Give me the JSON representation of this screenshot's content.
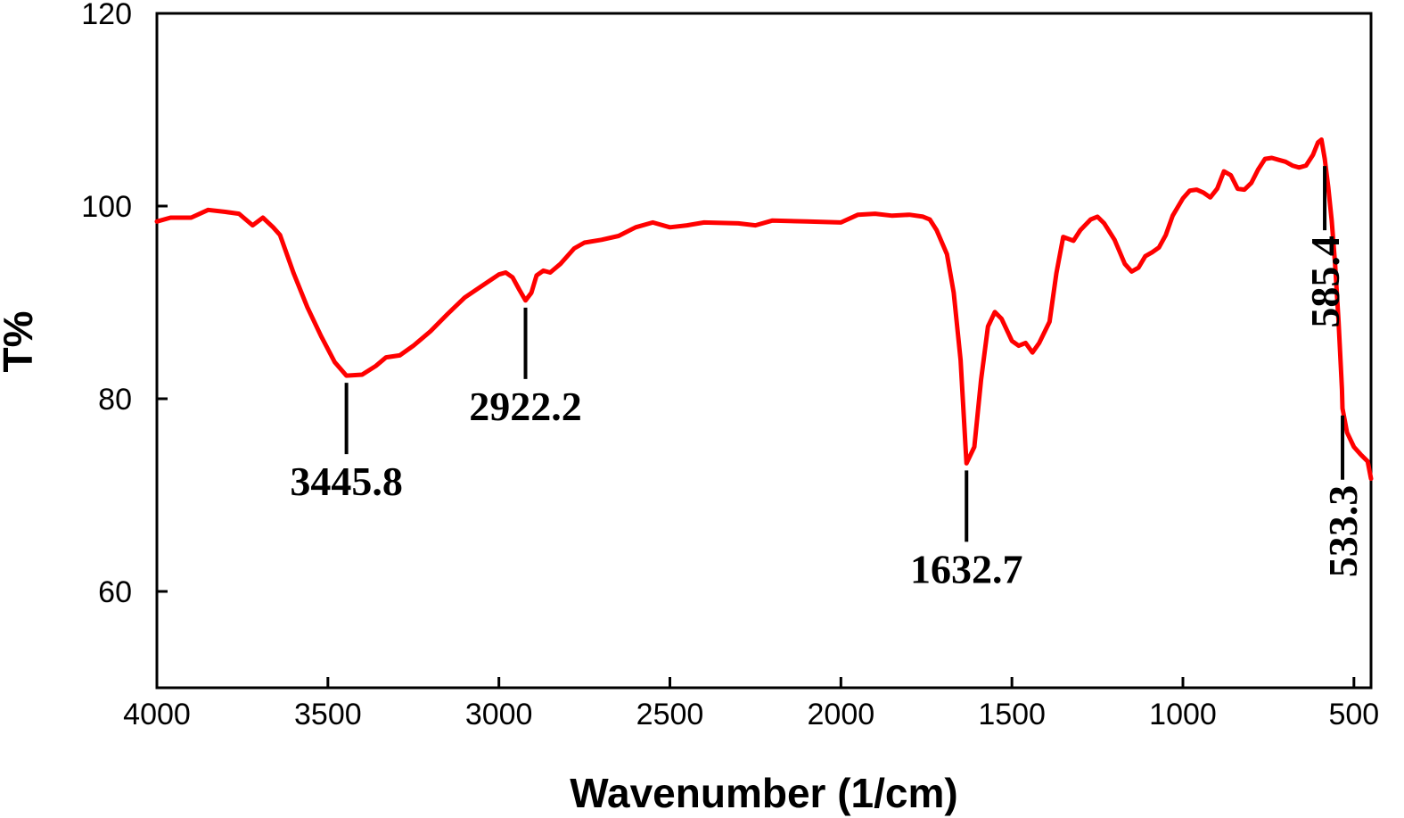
{
  "chart_data": {
    "type": "line",
    "title": "",
    "xlabel": "Wavenumber (1/cm)",
    "ylabel": "T%",
    "xlim": [
      4000,
      450
    ],
    "ylim": [
      50,
      120
    ],
    "x_reversed": true,
    "grid": false,
    "x_ticks": [
      4000,
      3500,
      3000,
      2500,
      2000,
      1500,
      1000,
      500
    ],
    "x_tick_labels": [
      "4000",
      "3500",
      "3000",
      "2500",
      "2000",
      "1500",
      "1000",
      "500"
    ],
    "y_ticks": [
      60,
      80,
      100,
      120
    ],
    "y_tick_labels": [
      "60",
      "80",
      "100",
      "120"
    ],
    "series": [
      {
        "color": "#ff0000",
        "points": [
          [
            4000,
            98.4
          ],
          [
            3960,
            98.8
          ],
          [
            3900,
            98.8
          ],
          [
            3850,
            99.6
          ],
          [
            3800,
            99.4
          ],
          [
            3760,
            99.2
          ],
          [
            3720,
            98.0
          ],
          [
            3690,
            98.8
          ],
          [
            3660,
            97.8
          ],
          [
            3640,
            97.0
          ],
          [
            3600,
            93.0
          ],
          [
            3560,
            89.5
          ],
          [
            3520,
            86.5
          ],
          [
            3480,
            83.8
          ],
          [
            3445.8,
            82.4
          ],
          [
            3400,
            82.5
          ],
          [
            3360,
            83.4
          ],
          [
            3330,
            84.3
          ],
          [
            3290,
            84.5
          ],
          [
            3250,
            85.5
          ],
          [
            3200,
            87.0
          ],
          [
            3150,
            88.8
          ],
          [
            3100,
            90.5
          ],
          [
            3050,
            91.7
          ],
          [
            3000,
            92.9
          ],
          [
            2980,
            93.1
          ],
          [
            2960,
            92.6
          ],
          [
            2940,
            91.3
          ],
          [
            2922.2,
            90.2
          ],
          [
            2905,
            91.0
          ],
          [
            2890,
            92.8
          ],
          [
            2870,
            93.3
          ],
          [
            2850,
            93.1
          ],
          [
            2820,
            94.0
          ],
          [
            2780,
            95.6
          ],
          [
            2750,
            96.2
          ],
          [
            2700,
            96.5
          ],
          [
            2650,
            96.9
          ],
          [
            2600,
            97.8
          ],
          [
            2550,
            98.3
          ],
          [
            2500,
            97.8
          ],
          [
            2450,
            98.0
          ],
          [
            2400,
            98.3
          ],
          [
            2300,
            98.2
          ],
          [
            2250,
            98.0
          ],
          [
            2200,
            98.5
          ],
          [
            2100,
            98.4
          ],
          [
            2000,
            98.3
          ],
          [
            1950,
            99.1
          ],
          [
            1900,
            99.2
          ],
          [
            1850,
            99.0
          ],
          [
            1800,
            99.1
          ],
          [
            1760,
            98.9
          ],
          [
            1740,
            98.6
          ],
          [
            1720,
            97.5
          ],
          [
            1690,
            95.0
          ],
          [
            1670,
            91.0
          ],
          [
            1650,
            84.0
          ],
          [
            1632.7,
            73.3
          ],
          [
            1610,
            75.0
          ],
          [
            1590,
            82.0
          ],
          [
            1570,
            87.5
          ],
          [
            1550,
            89.0
          ],
          [
            1530,
            88.3
          ],
          [
            1500,
            86.0
          ],
          [
            1480,
            85.5
          ],
          [
            1460,
            85.8
          ],
          [
            1440,
            84.8
          ],
          [
            1420,
            85.8
          ],
          [
            1390,
            88.0
          ],
          [
            1370,
            93.0
          ],
          [
            1350,
            96.8
          ],
          [
            1320,
            96.4
          ],
          [
            1300,
            97.5
          ],
          [
            1270,
            98.6
          ],
          [
            1250,
            98.9
          ],
          [
            1230,
            98.2
          ],
          [
            1200,
            96.5
          ],
          [
            1170,
            94.0
          ],
          [
            1150,
            93.2
          ],
          [
            1130,
            93.6
          ],
          [
            1110,
            94.8
          ],
          [
            1090,
            95.2
          ],
          [
            1070,
            95.7
          ],
          [
            1050,
            97.0
          ],
          [
            1030,
            99.0
          ],
          [
            1000,
            100.8
          ],
          [
            980,
            101.6
          ],
          [
            960,
            101.7
          ],
          [
            940,
            101.4
          ],
          [
            920,
            100.9
          ],
          [
            900,
            101.8
          ],
          [
            880,
            103.6
          ],
          [
            860,
            103.2
          ],
          [
            840,
            101.8
          ],
          [
            820,
            101.7
          ],
          [
            800,
            102.4
          ],
          [
            780,
            103.8
          ],
          [
            760,
            104.9
          ],
          [
            740,
            105.0
          ],
          [
            720,
            104.8
          ],
          [
            700,
            104.6
          ],
          [
            680,
            104.2
          ],
          [
            660,
            104.0
          ],
          [
            640,
            104.2
          ],
          [
            620,
            105.3
          ],
          [
            605,
            106.6
          ],
          [
            595,
            106.9
          ],
          [
            585.4,
            104.9
          ],
          [
            575,
            102.0
          ],
          [
            565,
            98.5
          ],
          [
            555,
            94.0
          ],
          [
            545,
            88.0
          ],
          [
            535,
            81.0
          ],
          [
            533.3,
            79.0
          ],
          [
            520,
            76.5
          ],
          [
            500,
            75.0
          ],
          [
            480,
            74.2
          ],
          [
            460,
            73.5
          ],
          [
            450,
            71.7
          ]
        ]
      }
    ],
    "annotations": [
      {
        "label": "3445.8",
        "x": 3445.8,
        "orientation": "horizontal",
        "position": "below"
      },
      {
        "label": "2922.2",
        "x": 2922.2,
        "orientation": "horizontal",
        "position": "below"
      },
      {
        "label": "1632.7",
        "x": 1632.7,
        "orientation": "horizontal",
        "position": "below"
      },
      {
        "label": "585.4",
        "x": 585.4,
        "orientation": "vertical",
        "position": "below"
      },
      {
        "label": "533.3",
        "x": 533.3,
        "orientation": "vertical",
        "position": "below"
      }
    ]
  }
}
